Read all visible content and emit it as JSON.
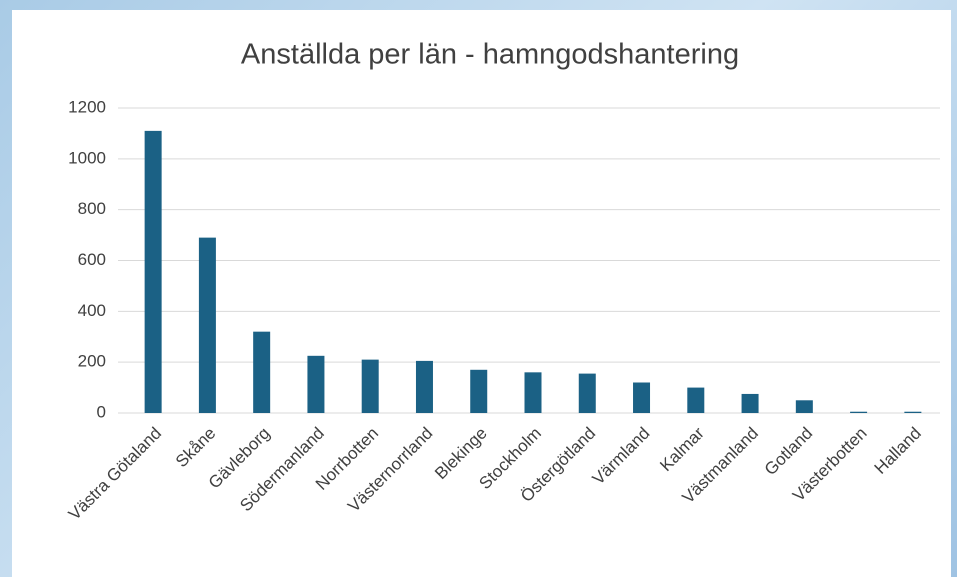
{
  "chart_data": {
    "type": "bar",
    "title": "Anställda per län - hamngodshantering",
    "categories": [
      "Västra Götaland",
      "Skåne",
      "Gävleborg",
      "Södermanland",
      "Norrbotten",
      "Västernorrland",
      "Blekinge",
      "Stockholm",
      "Östergötland",
      "Värmland",
      "Kalmar",
      "Västmanland",
      "Gotland",
      "Västerbotten",
      "Halland"
    ],
    "values": [
      1110,
      690,
      320,
      225,
      210,
      205,
      170,
      160,
      155,
      120,
      100,
      75,
      50,
      5,
      5
    ],
    "color": "#1b6185",
    "ylim": [
      0,
      1200
    ],
    "yticks": [
      0,
      200,
      400,
      600,
      800,
      1000,
      1200
    ],
    "grid": true
  }
}
